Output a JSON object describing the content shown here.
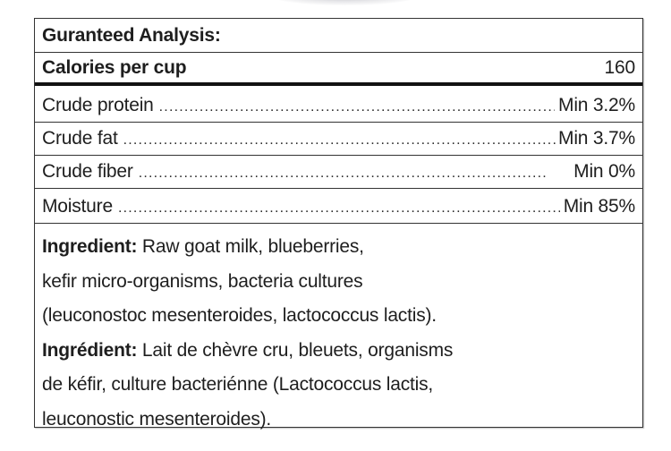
{
  "label": {
    "title": "Guranteed Analysis:",
    "calories": {
      "label": "Calories per cup",
      "value": "160"
    },
    "nutrients": [
      {
        "name": "Crude protein",
        "value": "Min 3.2%"
      },
      {
        "name": "Crude fat",
        "value": "Min 3.7%"
      },
      {
        "name": "Crude fiber",
        "value": "Min 0%"
      },
      {
        "name": "Moisture",
        "value": "Min 85%"
      }
    ],
    "dot_leader": "..................................................................................................................",
    "ingredients_en": {
      "heading": "Ingredient:",
      "lines": [
        " Raw goat milk, blueberries,",
        "kefir micro-organisms, bacteria cultures",
        "(leuconostoc mesenteroides, lactococcus lactis)."
      ]
    },
    "ingredients_fr": {
      "heading": "Ingrédient:",
      "lines": [
        " Lait de chèvre cru, bleuets, organisms",
        "de kéfir, culture bacteriénne (Lactococcus lactis,",
        "leuconostic mesenteroides)."
      ]
    }
  }
}
